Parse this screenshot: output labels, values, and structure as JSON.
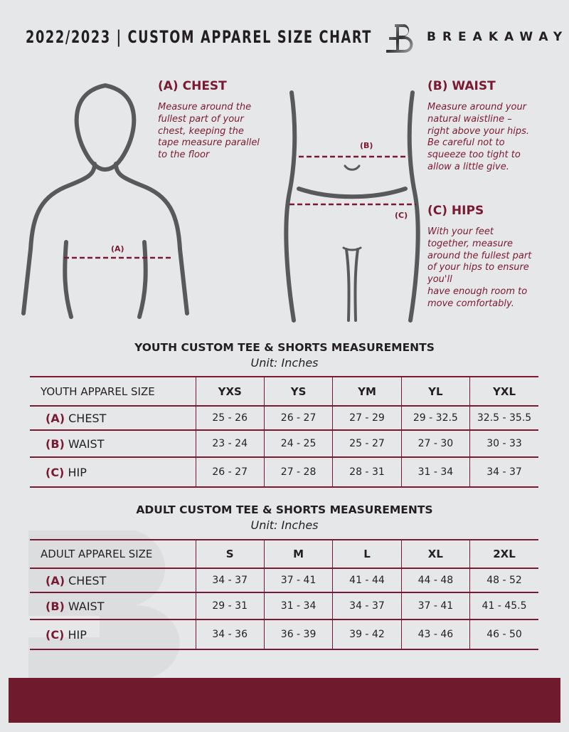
{
  "header": {
    "title": "2022/2023  |  CUSTOM APPAREL SIZE CHART",
    "brand": "BREAKAWAY",
    "logo_letter": "B"
  },
  "colors": {
    "accent": "#7a1a32",
    "background": "#e6e7e9",
    "footer": "#701a2e"
  },
  "measures": {
    "chest": {
      "heading": "(A) CHEST",
      "marker": "(A)",
      "text": "Measure around the\nfullest part of your\nchest, keeping the\ntape measure parallel\nto the floor"
    },
    "waist": {
      "heading": "(B) WAIST",
      "marker": "(B)",
      "text": "Measure around your\nnatural waistline –\nright above your hips.\nBe careful not to\nsqueeze too tight to\nallow a little give."
    },
    "hips": {
      "heading": "(C) HIPS",
      "marker": "(C)",
      "text": "With your feet\ntogether, measure\naround the fullest part\nof your hips to ensure\nyou'll\nhave enough room to\nmove comfortably."
    }
  },
  "youth": {
    "title": "YOUTH CUSTOM TEE & SHORTS MEASUREMENTS",
    "unit": "Unit: Inches",
    "header": "YOUTH APPAREL SIZE",
    "sizes": [
      "YXS",
      "YS",
      "YM",
      "YL",
      "YXL"
    ],
    "rows": [
      {
        "code": "(A)",
        "label": "CHEST",
        "values": [
          "25 - 26",
          "26 - 27",
          "27 - 29",
          "29 - 32.5",
          "32.5 - 35.5"
        ]
      },
      {
        "code": "(B)",
        "label": "WAIST",
        "values": [
          "23 - 24",
          "24 - 25",
          "25 - 27",
          "27 - 30",
          "30 - 33"
        ]
      },
      {
        "code": "(C)",
        "label": "HIP",
        "values": [
          "26 - 27",
          "27 - 28",
          "28 - 31",
          "31 - 34",
          "34 - 37"
        ]
      }
    ]
  },
  "adult": {
    "title": "ADULT CUSTOM TEE & SHORTS MEASUREMENTS",
    "unit": "Unit: Inches",
    "header": "ADULT APPAREL SIZE",
    "sizes": [
      "S",
      "M",
      "L",
      "XL",
      "2XL"
    ],
    "rows": [
      {
        "code": "(A)",
        "label": "CHEST",
        "values": [
          "34 - 37",
          "37 - 41",
          "41 - 44",
          "44 - 48",
          "48 - 52"
        ]
      },
      {
        "code": "(B)",
        "label": "WAIST",
        "values": [
          "29 - 31",
          "31 - 34",
          "34 - 37",
          "37 - 41",
          "41 - 45.5"
        ]
      },
      {
        "code": "(C)",
        "label": "HIP",
        "values": [
          "34 - 36",
          "36 - 39",
          "39 - 42",
          "43 - 46",
          "46 - 50"
        ]
      }
    ]
  }
}
